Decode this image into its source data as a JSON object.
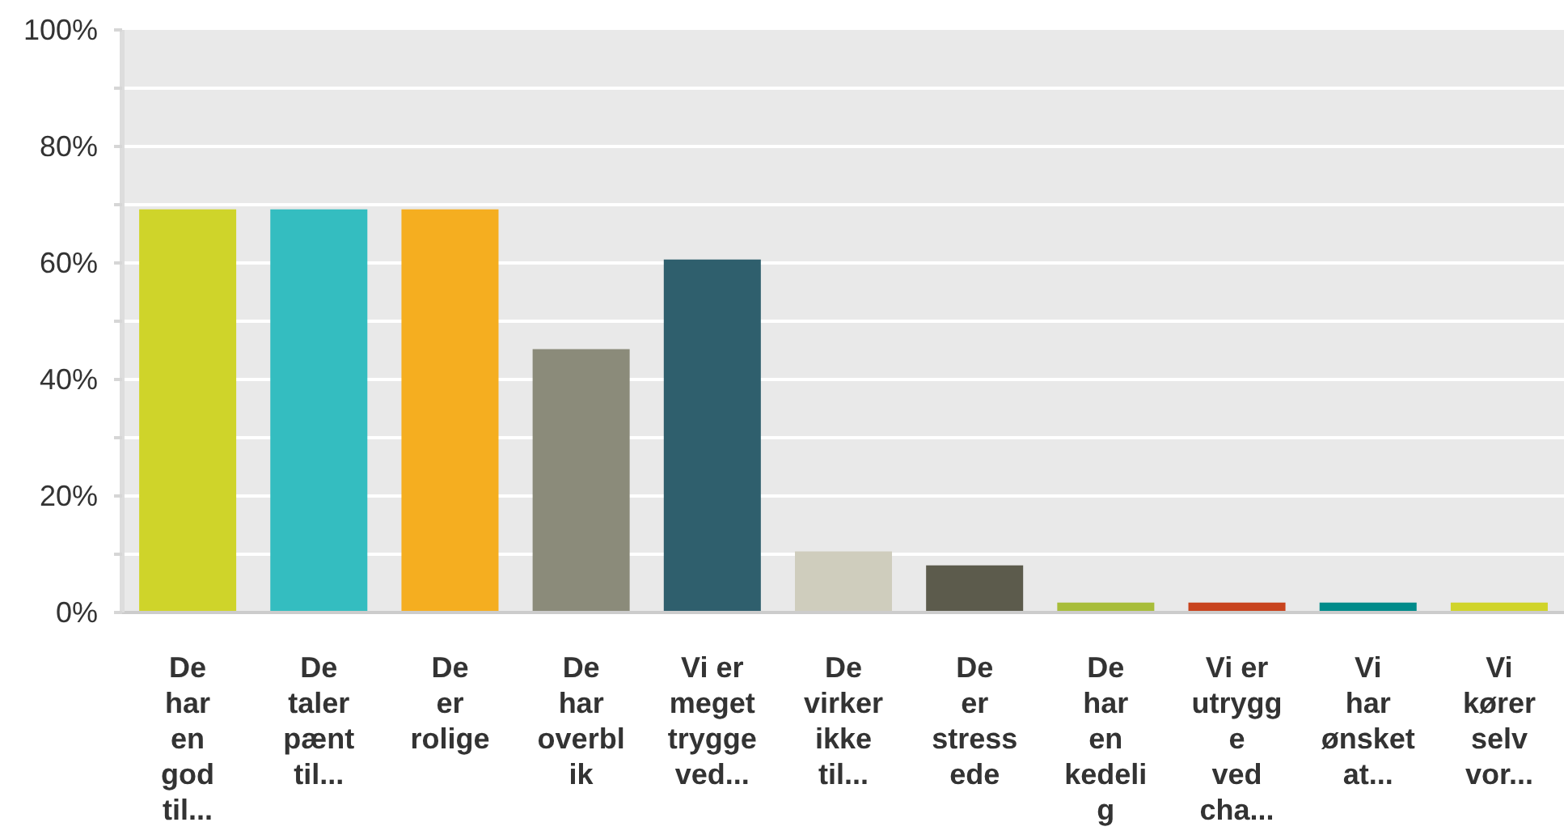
{
  "chart_data": {
    "type": "bar",
    "categories": [
      "De\nhar\nen\ngod\ntil...",
      "De\ntaler\npænt\ntil...",
      "De\ner\nrolige",
      "De\nhar\noverbl\nik",
      "Vi er\nmeget\ntrygge\nved...",
      "De\nvirker\nikke\ntil...",
      "De\ner\nstress\nede",
      "De\nhar\nen\nkedeli\ng",
      "Vi er\nutrygg\ne\nved\ncha...",
      "Vi\nhar\nønsket\nat...",
      "Vi\nkører\nselv\nvor..."
    ],
    "values": [
      69.2,
      69.2,
      69.2,
      45.2,
      60.6,
      10.5,
      8.1,
      1.7,
      1.7,
      1.7,
      1.7
    ],
    "colors": [
      "#cfd42a",
      "#34bdc0",
      "#f5ae20",
      "#8b8b7a",
      "#2f5f6d",
      "#cfcdbd",
      "#5c5b4c",
      "#a8bd3a",
      "#c8441e",
      "#008b8a",
      "#d0d42a"
    ],
    "ylim": [
      0,
      100
    ],
    "yticks": [
      {
        "value": 0,
        "label": "0%"
      },
      {
        "value": 10,
        "label": null
      },
      {
        "value": 20,
        "label": "20%"
      },
      {
        "value": 30,
        "label": null
      },
      {
        "value": 40,
        "label": "40%"
      },
      {
        "value": 50,
        "label": null
      },
      {
        "value": 60,
        "label": "60%"
      },
      {
        "value": 70,
        "label": null
      },
      {
        "value": 80,
        "label": "80%"
      },
      {
        "value": 90,
        "label": null
      },
      {
        "value": 100,
        "label": "100%"
      }
    ],
    "grid": "y"
  }
}
